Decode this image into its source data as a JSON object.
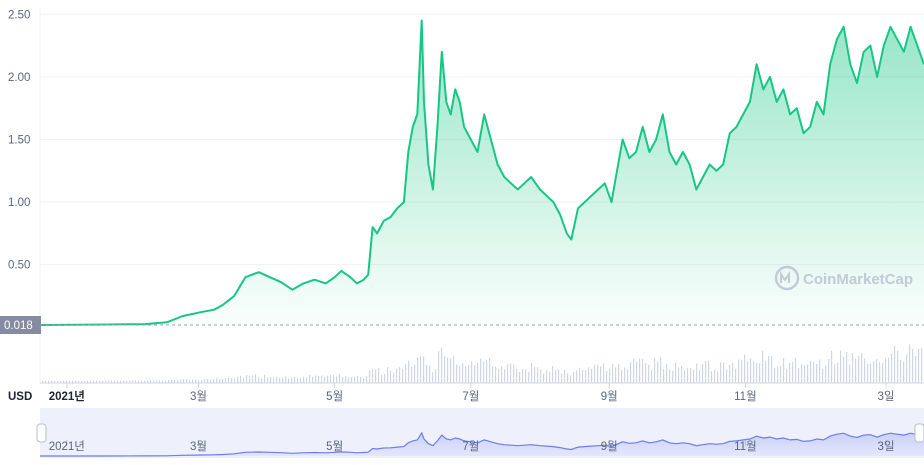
{
  "chart_data": {
    "type": "area",
    "currency_label": "USD",
    "start_price_label": "0.018",
    "watermark": "CoinMarketCap",
    "colors": {
      "line": "#16c784",
      "fill_top": "#16c784",
      "baseline_badge": "#858ca2",
      "volume": "#cfd6e4",
      "navigator": "#6c7cf2"
    },
    "y_ticks": [
      "2.50",
      "2.00",
      "1.50",
      "1.00",
      "0.50"
    ],
    "y_tick_values": [
      2.5,
      2.0,
      1.5,
      1.0,
      0.5
    ],
    "ylim": [
      0.018,
      2.55
    ],
    "x_ticks": [
      "2021년",
      "3월",
      "5월",
      "7월",
      "9월",
      "11월",
      "3일"
    ],
    "x_tick_dates": [
      "2021-01-01",
      "2021-03-01",
      "2021-05-01",
      "2021-07-01",
      "2021-09-01",
      "2021-11-01",
      "2022-01-03"
    ],
    "xlim": [
      "2020-12-20",
      "2022-01-20"
    ],
    "points": [
      [
        "2020-12-20",
        0.018
      ],
      [
        "2021-01-05",
        0.02
      ],
      [
        "2021-01-20",
        0.022
      ],
      [
        "2021-02-05",
        0.025
      ],
      [
        "2021-02-15",
        0.04
      ],
      [
        "2021-02-22",
        0.09
      ],
      [
        "2021-03-02",
        0.12
      ],
      [
        "2021-03-08",
        0.14
      ],
      [
        "2021-03-12",
        0.18
      ],
      [
        "2021-03-17",
        0.25
      ],
      [
        "2021-03-22",
        0.4
      ],
      [
        "2021-03-28",
        0.44
      ],
      [
        "2021-04-02",
        0.4
      ],
      [
        "2021-04-07",
        0.36
      ],
      [
        "2021-04-12",
        0.3
      ],
      [
        "2021-04-17",
        0.35
      ],
      [
        "2021-04-22",
        0.38
      ],
      [
        "2021-04-27",
        0.35
      ],
      [
        "2021-05-01",
        0.4
      ],
      [
        "2021-05-04",
        0.45
      ],
      [
        "2021-05-08",
        0.4
      ],
      [
        "2021-05-11",
        0.35
      ],
      [
        "2021-05-14",
        0.38
      ],
      [
        "2021-05-16",
        0.42
      ],
      [
        "2021-05-18",
        0.8
      ],
      [
        "2021-05-20",
        0.75
      ],
      [
        "2021-05-23",
        0.85
      ],
      [
        "2021-05-26",
        0.88
      ],
      [
        "2021-05-29",
        0.95
      ],
      [
        "2021-06-01",
        1.0
      ],
      [
        "2021-06-03",
        1.4
      ],
      [
        "2021-06-05",
        1.6
      ],
      [
        "2021-06-07",
        1.7
      ],
      [
        "2021-06-09",
        2.45
      ],
      [
        "2021-06-10",
        1.8
      ],
      [
        "2021-06-12",
        1.3
      ],
      [
        "2021-06-14",
        1.1
      ],
      [
        "2021-06-16",
        1.6
      ],
      [
        "2021-06-18",
        2.2
      ],
      [
        "2021-06-20",
        1.8
      ],
      [
        "2021-06-22",
        1.7
      ],
      [
        "2021-06-24",
        1.9
      ],
      [
        "2021-06-26",
        1.8
      ],
      [
        "2021-06-28",
        1.6
      ],
      [
        "2021-07-01",
        1.5
      ],
      [
        "2021-07-04",
        1.4
      ],
      [
        "2021-07-07",
        1.7
      ],
      [
        "2021-07-10",
        1.5
      ],
      [
        "2021-07-13",
        1.3
      ],
      [
        "2021-07-16",
        1.2
      ],
      [
        "2021-07-19",
        1.15
      ],
      [
        "2021-07-22",
        1.1
      ],
      [
        "2021-07-25",
        1.15
      ],
      [
        "2021-07-28",
        1.2
      ],
      [
        "2021-08-01",
        1.1
      ],
      [
        "2021-08-04",
        1.05
      ],
      [
        "2021-08-07",
        1.0
      ],
      [
        "2021-08-10",
        0.9
      ],
      [
        "2021-08-13",
        0.75
      ],
      [
        "2021-08-15",
        0.7
      ],
      [
        "2021-08-18",
        0.95
      ],
      [
        "2021-08-21",
        1.0
      ],
      [
        "2021-08-24",
        1.05
      ],
      [
        "2021-08-27",
        1.1
      ],
      [
        "2021-08-30",
        1.15
      ],
      [
        "2021-09-02",
        1.0
      ],
      [
        "2021-09-04",
        1.2
      ],
      [
        "2021-09-07",
        1.5
      ],
      [
        "2021-09-10",
        1.35
      ],
      [
        "2021-09-13",
        1.4
      ],
      [
        "2021-09-16",
        1.6
      ],
      [
        "2021-09-19",
        1.4
      ],
      [
        "2021-09-22",
        1.5
      ],
      [
        "2021-09-25",
        1.7
      ],
      [
        "2021-09-28",
        1.4
      ],
      [
        "2021-10-01",
        1.3
      ],
      [
        "2021-10-04",
        1.4
      ],
      [
        "2021-10-07",
        1.3
      ],
      [
        "2021-10-10",
        1.1
      ],
      [
        "2021-10-13",
        1.2
      ],
      [
        "2021-10-16",
        1.3
      ],
      [
        "2021-10-19",
        1.25
      ],
      [
        "2021-10-22",
        1.3
      ],
      [
        "2021-10-25",
        1.55
      ],
      [
        "2021-10-28",
        1.6
      ],
      [
        "2021-10-31",
        1.7
      ],
      [
        "2021-11-03",
        1.8
      ],
      [
        "2021-11-06",
        2.1
      ],
      [
        "2021-11-09",
        1.9
      ],
      [
        "2021-11-12",
        2.0
      ],
      [
        "2021-11-15",
        1.8
      ],
      [
        "2021-11-18",
        1.9
      ],
      [
        "2021-11-21",
        1.7
      ],
      [
        "2021-11-24",
        1.75
      ],
      [
        "2021-11-27",
        1.55
      ],
      [
        "2021-11-30",
        1.6
      ],
      [
        "2021-12-03",
        1.8
      ],
      [
        "2021-12-06",
        1.7
      ],
      [
        "2021-12-09",
        2.1
      ],
      [
        "2021-12-12",
        2.3
      ],
      [
        "2021-12-15",
        2.4
      ],
      [
        "2021-12-18",
        2.1
      ],
      [
        "2021-12-21",
        1.95
      ],
      [
        "2021-12-24",
        2.2
      ],
      [
        "2021-12-27",
        2.25
      ],
      [
        "2021-12-30",
        2.0
      ],
      [
        "2022-01-02",
        2.25
      ],
      [
        "2022-01-05",
        2.4
      ],
      [
        "2022-01-08",
        2.3
      ],
      [
        "2022-01-11",
        2.2
      ],
      [
        "2022-01-14",
        2.4
      ],
      [
        "2022-01-17",
        2.25
      ],
      [
        "2022-01-20",
        2.1
      ]
    ]
  }
}
